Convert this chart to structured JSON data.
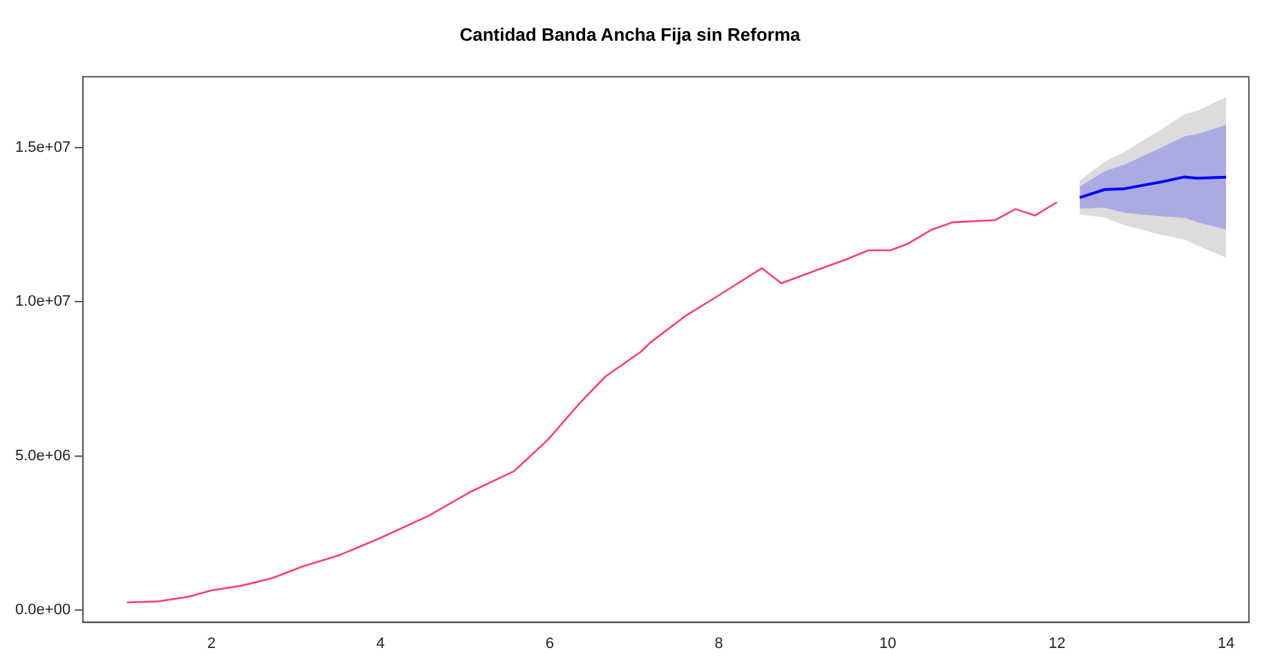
{
  "chart_data": {
    "type": "line",
    "title": "Cantidad Banda Ancha Fija sin Reforma",
    "xlim": [
      0.48,
      14.27
    ],
    "xticks": [
      2,
      4,
      6,
      8,
      10,
      12,
      14
    ],
    "ylim": [
      -390000,
      17300000
    ],
    "yticks": [
      {
        "value": 0,
        "label": "0.0e+00"
      },
      {
        "value": 5000000,
        "label": "5.0e+06"
      },
      {
        "value": 10000000,
        "label": "1.0e+07"
      },
      {
        "value": 15000000,
        "label": "1.5e+07"
      }
    ],
    "grid": false,
    "legend": false,
    "line_style": "solid",
    "marker": "none",
    "series": [
      {
        "color": "#ff3e68",
        "x": [
          1.0,
          1.35,
          1.72,
          2.0,
          2.35,
          2.72,
          3.08,
          3.5,
          3.98,
          4.56,
          5.08,
          5.58,
          5.98,
          6.35,
          6.66,
          7.08,
          7.19,
          7.61,
          8.0,
          8.51,
          8.74,
          9.14,
          9.51,
          9.77,
          10.03,
          10.24,
          10.51,
          10.77,
          11.27,
          11.51,
          11.74,
          12.0
        ],
        "values": [
          250000,
          280000,
          430000,
          640000,
          790000,
          1040000,
          1420000,
          1770000,
          2320000,
          3050000,
          3860000,
          4510000,
          5530000,
          6700000,
          7580000,
          8380000,
          8680000,
          9550000,
          10210000,
          11090000,
          10600000,
          11010000,
          11380000,
          11670000,
          11670000,
          11890000,
          12330000,
          12580000,
          12650000,
          13010000,
          12800000,
          13230000
        ]
      },
      {
        "color": "#dcdcdc",
        "x": [
          12.27,
          12.56,
          12.8,
          13.24,
          13.51,
          13.66,
          14.0
        ],
        "values": [
          null,
          null,
          null,
          null,
          null,
          null,
          null
        ],
        "lower": [
          12830000,
          12740000,
          12480000,
          12170000,
          12020000,
          11820000,
          11440000
        ],
        "upper": [
          13930000,
          14540000,
          14860000,
          15610000,
          16080000,
          16200000,
          16640000
        ]
      },
      {
        "color": "#0000ff",
        "x": [
          12.27,
          12.56,
          12.8,
          13.24,
          13.51,
          13.66,
          14.0
        ],
        "values": [
          13380000,
          13640000,
          13670000,
          13890000,
          14050000,
          14010000,
          14040000
        ],
        "lower": [
          13020000,
          13050000,
          12890000,
          12770000,
          12730000,
          12580000,
          12340000
        ],
        "upper": [
          13740000,
          14230000,
          14450000,
          15010000,
          15370000,
          15440000,
          15740000
        ]
      }
    ]
  }
}
